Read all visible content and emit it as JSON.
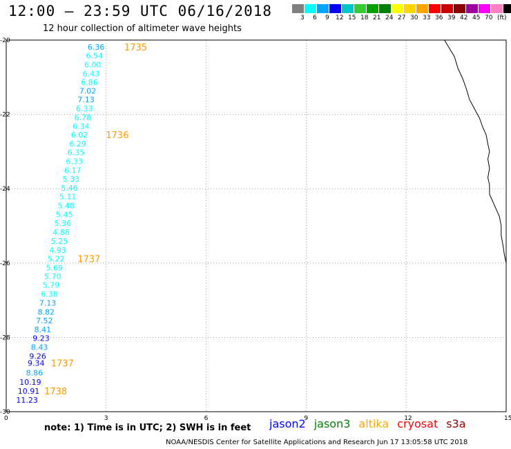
{
  "header": {
    "title": "12:00 – 23:59 UTC 06/16/2018",
    "subtitle": "12 hour collection of altimeter wave heights"
  },
  "legend": {
    "colors": [
      "#808080",
      "#00ffff",
      "#00a5ff",
      "#0000ff",
      "#00c8c8",
      "#32cd32",
      "#00a000",
      "#008000",
      "#ffff00",
      "#ffd700",
      "#ffa500",
      "#ff0000",
      "#cd0000",
      "#8b0000",
      "#a000a0",
      "#ff00ff",
      "#ff80c0",
      "#000000"
    ],
    "labels": [
      "3",
      "6",
      "9",
      "12",
      "15",
      "18",
      "21",
      "24",
      "27",
      "30",
      "33",
      "36",
      "39",
      "42",
      "45",
      "70",
      "(ft)"
    ]
  },
  "axes": {
    "x_ticks": [
      "0",
      "3",
      "6",
      "9",
      "12",
      "15"
    ],
    "y_ticks": [
      "-20",
      "-22",
      "-24",
      "-26",
      "-28",
      "-30"
    ]
  },
  "map_data": {
    "observations": [
      {
        "v": "6.36",
        "lon": 2.95,
        "lat": -20.19,
        "c": "#00a5ff"
      },
      {
        "v": "6.54",
        "lon": 2.9,
        "lat": -20.42,
        "c": "#00ffff"
      },
      {
        "v": "6.00",
        "lon": 2.85,
        "lat": -20.66,
        "c": "#00ffff"
      },
      {
        "v": "6.43",
        "lon": 2.8,
        "lat": -20.9,
        "c": "#00ffff"
      },
      {
        "v": "6.86",
        "lon": 2.75,
        "lat": -21.13,
        "c": "#00ffff"
      },
      {
        "v": "7.02",
        "lon": 2.7,
        "lat": -21.37,
        "c": "#00a5ff"
      },
      {
        "v": "7.13",
        "lon": 2.65,
        "lat": -21.6,
        "c": "#00a5ff"
      },
      {
        "v": "6.33",
        "lon": 2.6,
        "lat": -21.84,
        "c": "#00ffff"
      },
      {
        "v": "6.78",
        "lon": 2.55,
        "lat": -22.08,
        "c": "#00ffff"
      },
      {
        "v": "6.34",
        "lon": 2.5,
        "lat": -22.31,
        "c": "#00ffff"
      },
      {
        "v": "6.02",
        "lon": 2.45,
        "lat": -22.55,
        "c": "#00ffff"
      },
      {
        "v": "6.29",
        "lon": 2.4,
        "lat": -22.79,
        "c": "#00ffff"
      },
      {
        "v": "6.35",
        "lon": 2.35,
        "lat": -23.02,
        "c": "#00ffff"
      },
      {
        "v": "6.33",
        "lon": 2.3,
        "lat": -23.26,
        "c": "#00ffff"
      },
      {
        "v": "6.17",
        "lon": 2.25,
        "lat": -23.5,
        "c": "#00ffff"
      },
      {
        "v": "5.33",
        "lon": 2.2,
        "lat": -23.74,
        "c": "#00ffff"
      },
      {
        "v": "5.46",
        "lon": 2.15,
        "lat": -23.98,
        "c": "#00ffff"
      },
      {
        "v": "5.11",
        "lon": 2.1,
        "lat": -24.21,
        "c": "#00ffff"
      },
      {
        "v": "5.48",
        "lon": 2.05,
        "lat": -24.45,
        "c": "#00ffff"
      },
      {
        "v": "5.45",
        "lon": 2.0,
        "lat": -24.69,
        "c": "#00ffff"
      },
      {
        "v": "5.36",
        "lon": 1.95,
        "lat": -24.93,
        "c": "#00ffff"
      },
      {
        "v": "4.88",
        "lon": 1.9,
        "lat": -25.17,
        "c": "#00ffff"
      },
      {
        "v": "5.25",
        "lon": 1.85,
        "lat": -25.41,
        "c": "#00ffff"
      },
      {
        "v": "4.93",
        "lon": 1.8,
        "lat": -25.65,
        "c": "#00ffff"
      },
      {
        "v": "5.22",
        "lon": 1.75,
        "lat": -25.88,
        "c": "#00ffff"
      },
      {
        "v": "5.69",
        "lon": 1.7,
        "lat": -26.12,
        "c": "#00ffff"
      },
      {
        "v": "5.70",
        "lon": 1.65,
        "lat": -26.36,
        "c": "#00ffff"
      },
      {
        "v": "5.79",
        "lon": 1.6,
        "lat": -26.59,
        "c": "#00ffff"
      },
      {
        "v": "6.38",
        "lon": 1.55,
        "lat": -26.83,
        "c": "#00ffff"
      },
      {
        "v": "7.13",
        "lon": 1.5,
        "lat": -27.07,
        "c": "#00a5ff"
      },
      {
        "v": "8.82",
        "lon": 1.45,
        "lat": -27.31,
        "c": "#00a5ff"
      },
      {
        "v": "7.52",
        "lon": 1.4,
        "lat": -27.55,
        "c": "#00a5ff"
      },
      {
        "v": "8.41",
        "lon": 1.35,
        "lat": -27.79,
        "c": "#00a5ff"
      },
      {
        "v": "9.23",
        "lon": 1.3,
        "lat": -28.02,
        "c": "#0000ff"
      },
      {
        "v": "8.43",
        "lon": 1.25,
        "lat": -28.26,
        "c": "#00a5ff"
      },
      {
        "v": "9.26",
        "lon": 1.2,
        "lat": -28.5,
        "c": "#0000ff"
      },
      {
        "v": "9.34",
        "lon": 1.15,
        "lat": -28.69,
        "c": "#0000ff"
      },
      {
        "v": "8.86",
        "lon": 1.1,
        "lat": -28.95,
        "c": "#00a5ff"
      },
      {
        "v": "10.19",
        "lon": 1.05,
        "lat": -29.2,
        "c": "#0000ff"
      },
      {
        "v": "10.91",
        "lon": 1.0,
        "lat": -29.44,
        "c": "#0000ff"
      },
      {
        "v": "11.23",
        "lon": 0.95,
        "lat": -29.68,
        "c": "#0000ff"
      }
    ],
    "times": [
      {
        "t": "1735",
        "lon": 3.5,
        "lat": -20.19
      },
      {
        "t": "1736",
        "lon": 2.95,
        "lat": -22.55
      },
      {
        "t": "1737",
        "lon": 2.1,
        "lat": -25.88
      },
      {
        "t": "1737",
        "lon": 1.3,
        "lat": -28.69
      },
      {
        "t": "1738",
        "lon": 1.1,
        "lat": -29.44
      }
    ],
    "coast": [
      [
        13.15,
        -20.0
      ],
      [
        13.25,
        -20.15
      ],
      [
        13.45,
        -20.45
      ],
      [
        13.55,
        -20.75
      ],
      [
        13.7,
        -21.05
      ],
      [
        13.8,
        -21.3
      ],
      [
        13.9,
        -21.6
      ],
      [
        14.05,
        -21.85
      ],
      [
        14.2,
        -22.1
      ],
      [
        14.3,
        -22.35
      ],
      [
        14.4,
        -22.55
      ],
      [
        14.45,
        -22.8
      ],
      [
        14.5,
        -23.0
      ],
      [
        14.45,
        -23.2
      ],
      [
        14.5,
        -23.45
      ],
      [
        14.45,
        -23.7
      ],
      [
        14.5,
        -23.9
      ],
      [
        14.5,
        -24.15
      ],
      [
        14.6,
        -24.35
      ],
      [
        14.7,
        -24.55
      ],
      [
        14.8,
        -24.75
      ],
      [
        14.85,
        -25.0
      ],
      [
        14.85,
        -25.25
      ],
      [
        14.9,
        -25.5
      ],
      [
        14.95,
        -25.8
      ],
      [
        15.0,
        -26.0
      ],
      [
        15.0,
        -26.2
      ]
    ]
  },
  "footer": {
    "note": "note: 1) Time is in UTC; 2) SWH is in feet",
    "satellites": [
      {
        "name": "jason2",
        "color": "#0000ff"
      },
      {
        "name": "jason3",
        "color": "#008000"
      },
      {
        "name": "altika",
        "color": "#ffa500"
      },
      {
        "name": "cryosat",
        "color": "#ff0000"
      },
      {
        "name": "s3a",
        "color": "#8b0000"
      }
    ],
    "credit": "NOAA/NESDIS Center for Satellite Applications and Research   Jun 17 13:05:58 UTC 2018"
  }
}
